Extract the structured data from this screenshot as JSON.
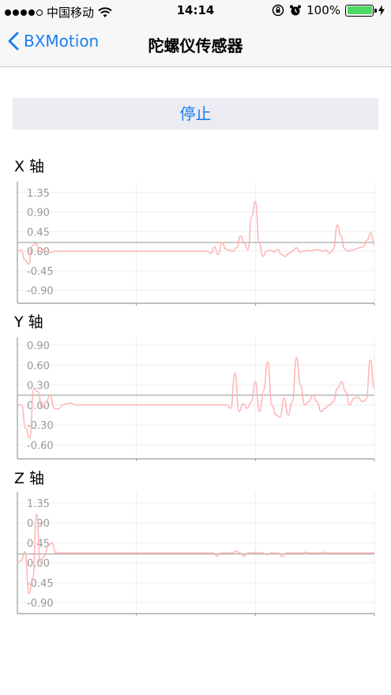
{
  "status_bar": {
    "carrier": "中国移动",
    "time": "14:14",
    "battery": "100%",
    "battery_level": 1.0,
    "signal_bars": 4,
    "icons": [
      "wifi-icon",
      "orientation-lock-icon",
      "alarm-icon",
      "charging-icon"
    ]
  },
  "nav": {
    "back_label": "BXMotion",
    "title": "陀螺仪传感器"
  },
  "stop_label": "停止",
  "colors": {
    "accent": "#1a7ef0",
    "line": "#ffb3b3",
    "baseline": "#aaaaaa"
  },
  "chart_data": [
    {
      "type": "line",
      "title": "X 轴",
      "ylim": [
        -1.2,
        1.6
      ],
      "yticks": [
        "1.35",
        "0.90",
        "0.45",
        "0.00",
        "-0.45",
        "-0.90"
      ],
      "ytick_values": [
        1.35,
        0.9,
        0.45,
        0.0,
        -0.45,
        -0.9
      ],
      "baseline": 0.2,
      "grid": true,
      "y": [
        0.0,
        0.02,
        -0.2,
        -0.3,
        0.12,
        0.18,
        -0.02,
        0.05,
        -0.02,
        -0.03,
        0.0,
        0.0,
        0.0,
        0.0,
        0.0,
        0.0,
        0.0,
        0.0,
        0.0,
        0.0,
        0.0,
        0.0,
        0.0,
        0.0,
        0.0,
        0.0,
        0.0,
        0.0,
        0.0,
        0.0,
        0.0,
        0.0,
        0.0,
        0.0,
        0.0,
        0.0,
        0.0,
        0.0,
        0.0,
        0.0,
        0.0,
        0.0,
        0.0,
        0.0,
        0.0,
        0.0,
        0.0,
        0.0,
        0.0,
        0.0,
        0.0,
        0.0,
        -0.05,
        0.1,
        -0.08,
        0.2,
        0.05,
        0.02,
        0.0,
        0.08,
        0.35,
        0.18,
        0.03,
        0.8,
        1.15,
        0.2,
        -0.12,
        0.0,
        0.02,
        -0.02,
        0.04,
        -0.08,
        -0.12,
        -0.05,
        0.0,
        0.08,
        -0.02,
        0.0,
        0.02,
        0.0,
        0.03,
        0.03,
        0.0,
        0.02,
        -0.05,
        0.05,
        0.6,
        0.35,
        0.05,
        0.0,
        0.02,
        0.05,
        0.08,
        0.1,
        0.25,
        0.42,
        0.15
      ]
    },
    {
      "type": "line",
      "title": "Y 轴",
      "ylim": [
        -0.81,
        1.02
      ],
      "yticks": [
        "0.90",
        "0.60",
        "0.30",
        "0.00",
        "-0.30",
        "-0.60"
      ],
      "ytick_values": [
        0.9,
        0.6,
        0.3,
        0.0,
        -0.3,
        -0.6
      ],
      "baseline": 0.15,
      "grid": true,
      "y": [
        0.0,
        0.0,
        -0.35,
        -0.5,
        0.25,
        0.2,
        -0.05,
        0.05,
        0.15,
        -0.05,
        -0.06,
        0.0,
        0.02,
        0.03,
        0.0,
        0.0,
        0.0,
        0.0,
        0.0,
        0.0,
        0.0,
        0.0,
        0.0,
        0.0,
        0.0,
        0.0,
        0.0,
        0.0,
        0.0,
        0.0,
        0.0,
        0.0,
        0.0,
        0.0,
        0.0,
        0.0,
        0.0,
        0.0,
        0.0,
        0.0,
        0.0,
        0.0,
        0.0,
        0.0,
        0.0,
        0.0,
        0.0,
        0.0,
        0.0,
        0.0,
        0.0,
        0.0,
        -0.05,
        0.48,
        -0.1,
        0.02,
        -0.05,
        0.05,
        0.35,
        -0.1,
        0.22,
        0.65,
        0.0,
        -0.15,
        -0.18,
        0.1,
        -0.15,
        0.05,
        0.72,
        0.3,
        0.0,
        0.05,
        0.15,
        0.05,
        -0.1,
        -0.05,
        0.0,
        0.05,
        0.25,
        0.35,
        0.2,
        0.0,
        0.1,
        0.12,
        0.05,
        0.08,
        0.68,
        0.25
      ]
    },
    {
      "type": "line",
      "title": "Z 轴",
      "ylim": [
        -1.15,
        1.6
      ],
      "yticks": [
        "1.35",
        "0.90",
        "0.45",
        "0.00",
        "-0.45",
        "-0.90"
      ],
      "ytick_values": [
        1.35,
        0.9,
        0.45,
        0.0,
        -0.45,
        -0.9
      ],
      "baseline": 0.2,
      "grid": true,
      "y": [
        0.0,
        0.05,
        0.25,
        -0.7,
        -0.35,
        1.1,
        0.0,
        0.15,
        0.38,
        0.45,
        0.22,
        0.22,
        0.22,
        0.22,
        0.22,
        0.22,
        0.22,
        0.22,
        0.22,
        0.22,
        0.22,
        0.22,
        0.22,
        0.22,
        0.22,
        0.22,
        0.22,
        0.22,
        0.22,
        0.22,
        0.22,
        0.22,
        0.22,
        0.22,
        0.22,
        0.22,
        0.22,
        0.22,
        0.22,
        0.22,
        0.22,
        0.22,
        0.22,
        0.22,
        0.22,
        0.22,
        0.22,
        0.22,
        0.22,
        0.22,
        0.22,
        0.22,
        0.15,
        0.22,
        0.22,
        0.22,
        0.22,
        0.26,
        0.22,
        0.15,
        0.22,
        0.22,
        0.24,
        0.22,
        0.22,
        0.18,
        0.22,
        0.22,
        0.22,
        0.14,
        0.22,
        0.22,
        0.22,
        0.22,
        0.22,
        0.24,
        0.22,
        0.22,
        0.22,
        0.22,
        0.24,
        0.22,
        0.22,
        0.22,
        0.22,
        0.22,
        0.22,
        0.22,
        0.22,
        0.22,
        0.22,
        0.22,
        0.22,
        0.22
      ]
    }
  ]
}
